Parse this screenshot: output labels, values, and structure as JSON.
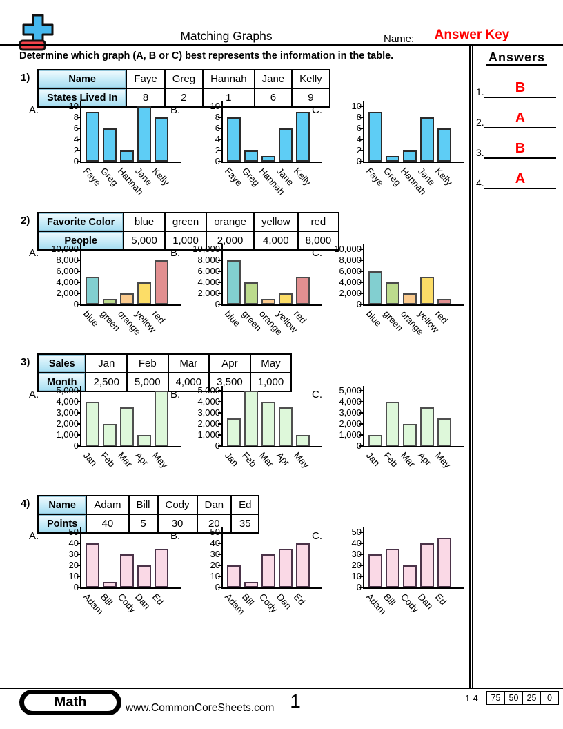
{
  "header": {
    "title": "Matching Graphs",
    "name_label": "Name:",
    "name_value": "Answer Key",
    "instruction": "Determine which graph (A, B or C) best represents the information in the table.",
    "answers_title": "Answers"
  },
  "answer_color": "#ff0000",
  "answers": [
    {
      "num": "1.",
      "value": "B"
    },
    {
      "num": "2.",
      "value": "A"
    },
    {
      "num": "3.",
      "value": "B"
    },
    {
      "num": "4.",
      "value": "A"
    }
  ],
  "problems": [
    {
      "number": "1)",
      "table": {
        "row_headers": [
          "Name",
          "States Lived In"
        ],
        "columns": [
          "Faye",
          "Greg",
          "Hannah",
          "Jane",
          "Kelly"
        ],
        "values": [
          "8",
          "2",
          "1",
          "6",
          "9"
        ]
      },
      "chart_data": {
        "type": "bar",
        "categories": [
          "Faye",
          "Greg",
          "Hannah",
          "Jane",
          "Kelly"
        ],
        "ylim": [
          0,
          10
        ],
        "ymax": 10,
        "ytick_labels": [
          "10",
          "8",
          "6",
          "4",
          "2",
          "0"
        ],
        "series": [
          {
            "name": "A.",
            "values": [
              9,
              6,
              2,
              10,
              8
            ]
          },
          {
            "name": "B.",
            "values": [
              8,
              2,
              1,
              6,
              9
            ]
          },
          {
            "name": "C.",
            "values": [
              9,
              1,
              2,
              8,
              6
            ]
          }
        ],
        "bar_fill": "#5ecdf5",
        "bar_border": "#2b2b2b"
      }
    },
    {
      "number": "2)",
      "table": {
        "row_headers": [
          "Favorite Color",
          "People"
        ],
        "columns": [
          "blue",
          "green",
          "orange",
          "yellow",
          "red"
        ],
        "values": [
          "5,000",
          "1,000",
          "2,000",
          "4,000",
          "8,000"
        ]
      },
      "chart_data": {
        "type": "bar",
        "categories": [
          "blue",
          "green",
          "orange",
          "yellow",
          "red"
        ],
        "ylim": [
          0,
          10000
        ],
        "ymax": 10000,
        "ytick_labels": [
          "10,000",
          "8,000",
          "6,000",
          "4,000",
          "2,000",
          "0"
        ],
        "series": [
          {
            "name": "A.",
            "values": [
              5000,
              1000,
              2000,
              4000,
              8000
            ]
          },
          {
            "name": "B.",
            "values": [
              8000,
              4000,
              1000,
              2000,
              5000
            ]
          },
          {
            "name": "C.",
            "values": [
              6000,
              4000,
              2000,
              5000,
              1000
            ]
          }
        ],
        "bar_fill": [
          "#82cfd0",
          "#bcdb8d",
          "#fbcb8e",
          "#fcdd67",
          "#e18f90"
        ],
        "bar_border": "#4a4a4a"
      }
    },
    {
      "number": "3)",
      "table": {
        "row_headers": [
          "Sales",
          "Month"
        ],
        "columns": [
          "Jan",
          "Feb",
          "Mar",
          "Apr",
          "May"
        ],
        "values": [
          "2,500",
          "5,000",
          "4,000",
          "3,500",
          "1,000"
        ]
      },
      "chart_data": {
        "type": "bar",
        "categories": [
          "Jan",
          "Feb",
          "Mar",
          "Apr",
          "May"
        ],
        "ylim": [
          0,
          5000
        ],
        "ymax": 5000,
        "ytick_labels": [
          "5,000",
          "4,000",
          "3,000",
          "2,000",
          "1,000",
          "0"
        ],
        "series": [
          {
            "name": "A.",
            "values": [
              4000,
              2000,
              3500,
              1000,
              5000
            ]
          },
          {
            "name": "B.",
            "values": [
              2500,
              5000,
              4000,
              3500,
              1000
            ]
          },
          {
            "name": "C.",
            "values": [
              1000,
              4000,
              2000,
              3500,
              2500
            ]
          }
        ],
        "bar_fill": "#def8da",
        "bar_border": "#4f4f4f"
      }
    },
    {
      "number": "4)",
      "table": {
        "row_headers": [
          "Name",
          "Points"
        ],
        "columns": [
          "Adam",
          "Bill",
          "Cody",
          "Dan",
          "Ed"
        ],
        "values": [
          "40",
          "5",
          "30",
          "20",
          "35"
        ]
      },
      "chart_data": {
        "type": "bar",
        "categories": [
          "Adam",
          "Bill",
          "Cody",
          "Dan",
          "Ed"
        ],
        "ylim": [
          0,
          50
        ],
        "ymax": 50,
        "ytick_labels": [
          "50",
          "40",
          "30",
          "20",
          "10",
          "0"
        ],
        "series": [
          {
            "name": "A.",
            "values": [
              40,
              5,
              30,
              20,
              35
            ]
          },
          {
            "name": "B.",
            "values": [
              20,
              5,
              30,
              35,
              40
            ]
          },
          {
            "name": "C.",
            "values": [
              30,
              35,
              20,
              40,
              45
            ]
          }
        ],
        "bar_fill": "#fad9e6",
        "bar_border": "#4b3349"
      }
    }
  ],
  "footer": {
    "badge": "Math",
    "url": "www.CommonCoreSheets.com",
    "page": "1",
    "range": "1-4",
    "scores": [
      "75",
      "50",
      "25",
      "0"
    ]
  },
  "logo": {
    "plus_color": "#45b8ef",
    "minus_color": "#f4444b"
  }
}
